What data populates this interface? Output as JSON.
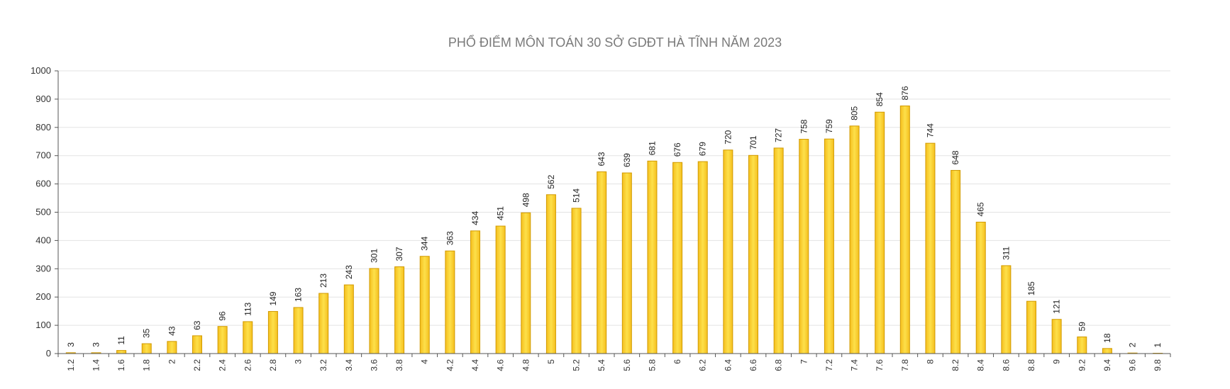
{
  "chart_data": {
    "type": "bar",
    "title": "PHỔ ĐIỂM MÔN TOÁN 30 SỞ GDĐT HÀ TĨNH NĂM 2023",
    "xlabel": "",
    "ylabel": "",
    "ylim": [
      0,
      1000
    ],
    "yticks": [
      0,
      100,
      200,
      300,
      400,
      500,
      600,
      700,
      800,
      900,
      1000
    ],
    "grid": true,
    "categories": [
      "1.2",
      "1.4",
      "1.6",
      "1.8",
      "2",
      "2.2",
      "2.4",
      "2.6",
      "2.8",
      "3",
      "3.2",
      "3.4",
      "3.6",
      "3.8",
      "4",
      "4.2",
      "4.4",
      "4.6",
      "4.8",
      "5",
      "5.2",
      "5.4",
      "5.6",
      "5.8",
      "6",
      "6.2",
      "6.4",
      "6.6",
      "6.8",
      "7",
      "7.2",
      "7.4",
      "7.6",
      "7.8",
      "8",
      "8.2",
      "8.4",
      "8.6",
      "8.8",
      "9",
      "9.2",
      "9.4",
      "9.6",
      "9.8"
    ],
    "values": [
      3,
      3,
      11,
      35,
      43,
      63,
      96,
      113,
      149,
      163,
      213,
      243,
      301,
      307,
      344,
      363,
      434,
      451,
      498,
      562,
      514,
      643,
      639,
      681,
      676,
      679,
      720,
      701,
      727,
      758,
      759,
      805,
      854,
      876,
      744,
      648,
      465,
      311,
      185,
      121,
      59,
      18,
      2,
      1
    ],
    "bar_color_top": "#fde04a",
    "bar_color_bottom": "#f5bf1e",
    "bar_stroke": "#d19a00"
  }
}
